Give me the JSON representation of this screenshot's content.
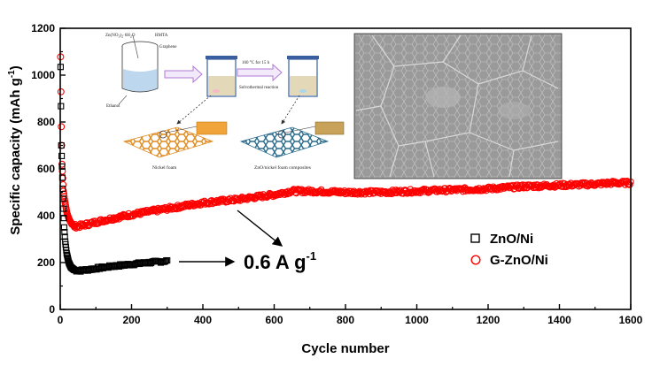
{
  "chart_data": {
    "type": "scatter",
    "xlabel": "Cycle number",
    "ylabel": "Specific capacity (mAh g",
    "ylabel_sup": "-1",
    "ylabel_close": ")",
    "xlim": [
      0,
      1600
    ],
    "ylim": [
      0,
      1200
    ],
    "xticks": [
      "0",
      "200",
      "400",
      "600",
      "800",
      "1000",
      "1200",
      "1400",
      "1600"
    ],
    "yticks": [
      "0",
      "200",
      "400",
      "600",
      "800",
      "1000",
      "1200"
    ],
    "annotation": {
      "text": "0.6 A g",
      "sup": "-1"
    },
    "legend_position": "right",
    "series": [
      {
        "name": "ZnO/Ni",
        "marker": "open-square",
        "color": "#000000",
        "points": [
          [
            1,
            1035
          ],
          [
            3,
            700
          ],
          [
            5,
            610
          ],
          [
            7,
            515
          ],
          [
            9,
            430
          ],
          [
            11,
            350
          ],
          [
            14,
            290
          ],
          [
            18,
            240
          ],
          [
            24,
            200
          ],
          [
            30,
            180
          ],
          [
            40,
            168
          ],
          [
            50,
            165
          ],
          [
            70,
            168
          ],
          [
            100,
            175
          ],
          [
            150,
            185
          ],
          [
            200,
            193
          ],
          [
            250,
            200
          ],
          [
            300,
            207
          ]
        ]
      },
      {
        "name": "G-ZnO/Ni",
        "marker": "open-circle",
        "color": "#ff0000",
        "points": [
          [
            1,
            1078
          ],
          [
            3,
            780
          ],
          [
            5,
            620
          ],
          [
            7,
            560
          ],
          [
            9,
            505
          ],
          [
            12,
            470
          ],
          [
            15,
            445
          ],
          [
            19,
            410
          ],
          [
            25,
            385
          ],
          [
            32,
            365
          ],
          [
            40,
            355
          ],
          [
            50,
            355
          ],
          [
            80,
            365
          ],
          [
            120,
            380
          ],
          [
            200,
            405
          ],
          [
            300,
            430
          ],
          [
            400,
            455
          ],
          [
            500,
            470
          ],
          [
            600,
            490
          ],
          [
            650,
            505
          ],
          [
            700,
            505
          ],
          [
            800,
            500
          ],
          [
            900,
            500
          ],
          [
            1000,
            505
          ],
          [
            1100,
            510
          ],
          [
            1200,
            515
          ],
          [
            1300,
            525
          ],
          [
            1400,
            530
          ],
          [
            1500,
            535
          ],
          [
            1550,
            540
          ],
          [
            1600,
            540
          ]
        ]
      }
    ]
  },
  "inset_schematic": {
    "reagent_1": "Zn(NO",
    "reagent_1_sub": "3",
    "reagent_1_mid": ")",
    "reagent_1_sub2": "2",
    "reagent_1_end": "·6H",
    "reagent_1_sub3": "2",
    "reagent_1_o": "O",
    "reagent_2": "HMTA",
    "reagent_3": "Graphene",
    "solvent": "Ethanol",
    "condition": "160 °C for 15 h",
    "process": "Solvothermal reaction",
    "foam_label": "Nickel foam",
    "composite_label": "ZnO/nickel foam composites"
  },
  "colors": {
    "accent_red": "#ff0000",
    "arrow_purple": "#b07ad6",
    "foam_orange": "#e08a1e",
    "composite_teal": "#2a6b8c"
  }
}
